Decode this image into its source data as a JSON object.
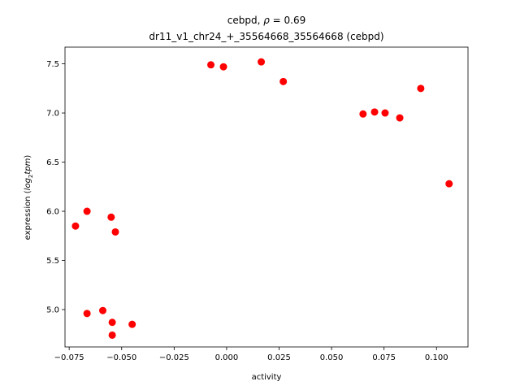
{
  "chart_data": {
    "type": "scatter",
    "title_line1_prefix": "cebpd, ",
    "title_line1_symbol": "ρ",
    "title_line1_suffix": " = 0.69",
    "title_line2": "dr11_v1_chr24_+_35564668_35564668 (cebpd)",
    "xlabel": "activity",
    "ylabel_prefix": "expression (",
    "ylabel_math": "log",
    "ylabel_sub": "2",
    "ylabel_math2": "tpm",
    "ylabel_suffix": ")",
    "xlim": [
      -0.077,
      0.115
    ],
    "ylim": [
      4.62,
      7.67
    ],
    "x_ticks": [
      -0.075,
      -0.05,
      -0.025,
      0.0,
      0.025,
      0.05,
      0.075,
      0.1
    ],
    "x_tick_labels": [
      "−0.075",
      "−0.050",
      "−0.025",
      "0.000",
      "0.025",
      "0.050",
      "0.075",
      "0.100"
    ],
    "y_ticks": [
      5.0,
      5.5,
      6.0,
      6.5,
      7.0,
      7.5
    ],
    "y_tick_labels": [
      "5.0",
      "5.5",
      "6.0",
      "6.5",
      "7.0",
      "7.5"
    ],
    "grid": false,
    "point_color": "#ff0000",
    "points": [
      {
        "x": -0.0075,
        "y": 7.49
      },
      {
        "x": -0.0015,
        "y": 7.47
      },
      {
        "x": 0.0165,
        "y": 7.52
      },
      {
        "x": 0.027,
        "y": 7.32
      },
      {
        "x": 0.065,
        "y": 6.99
      },
      {
        "x": 0.0705,
        "y": 7.01
      },
      {
        "x": 0.0755,
        "y": 7.0
      },
      {
        "x": 0.0825,
        "y": 6.95
      },
      {
        "x": 0.0925,
        "y": 7.25
      },
      {
        "x": 0.106,
        "y": 6.28
      },
      {
        "x": -0.072,
        "y": 5.85
      },
      {
        "x": -0.0665,
        "y": 6.0
      },
      {
        "x": -0.055,
        "y": 5.94
      },
      {
        "x": -0.053,
        "y": 5.79
      },
      {
        "x": -0.0665,
        "y": 4.96
      },
      {
        "x": -0.059,
        "y": 4.99
      },
      {
        "x": -0.0545,
        "y": 4.87
      },
      {
        "x": -0.0545,
        "y": 4.74
      },
      {
        "x": -0.045,
        "y": 4.85
      }
    ]
  }
}
